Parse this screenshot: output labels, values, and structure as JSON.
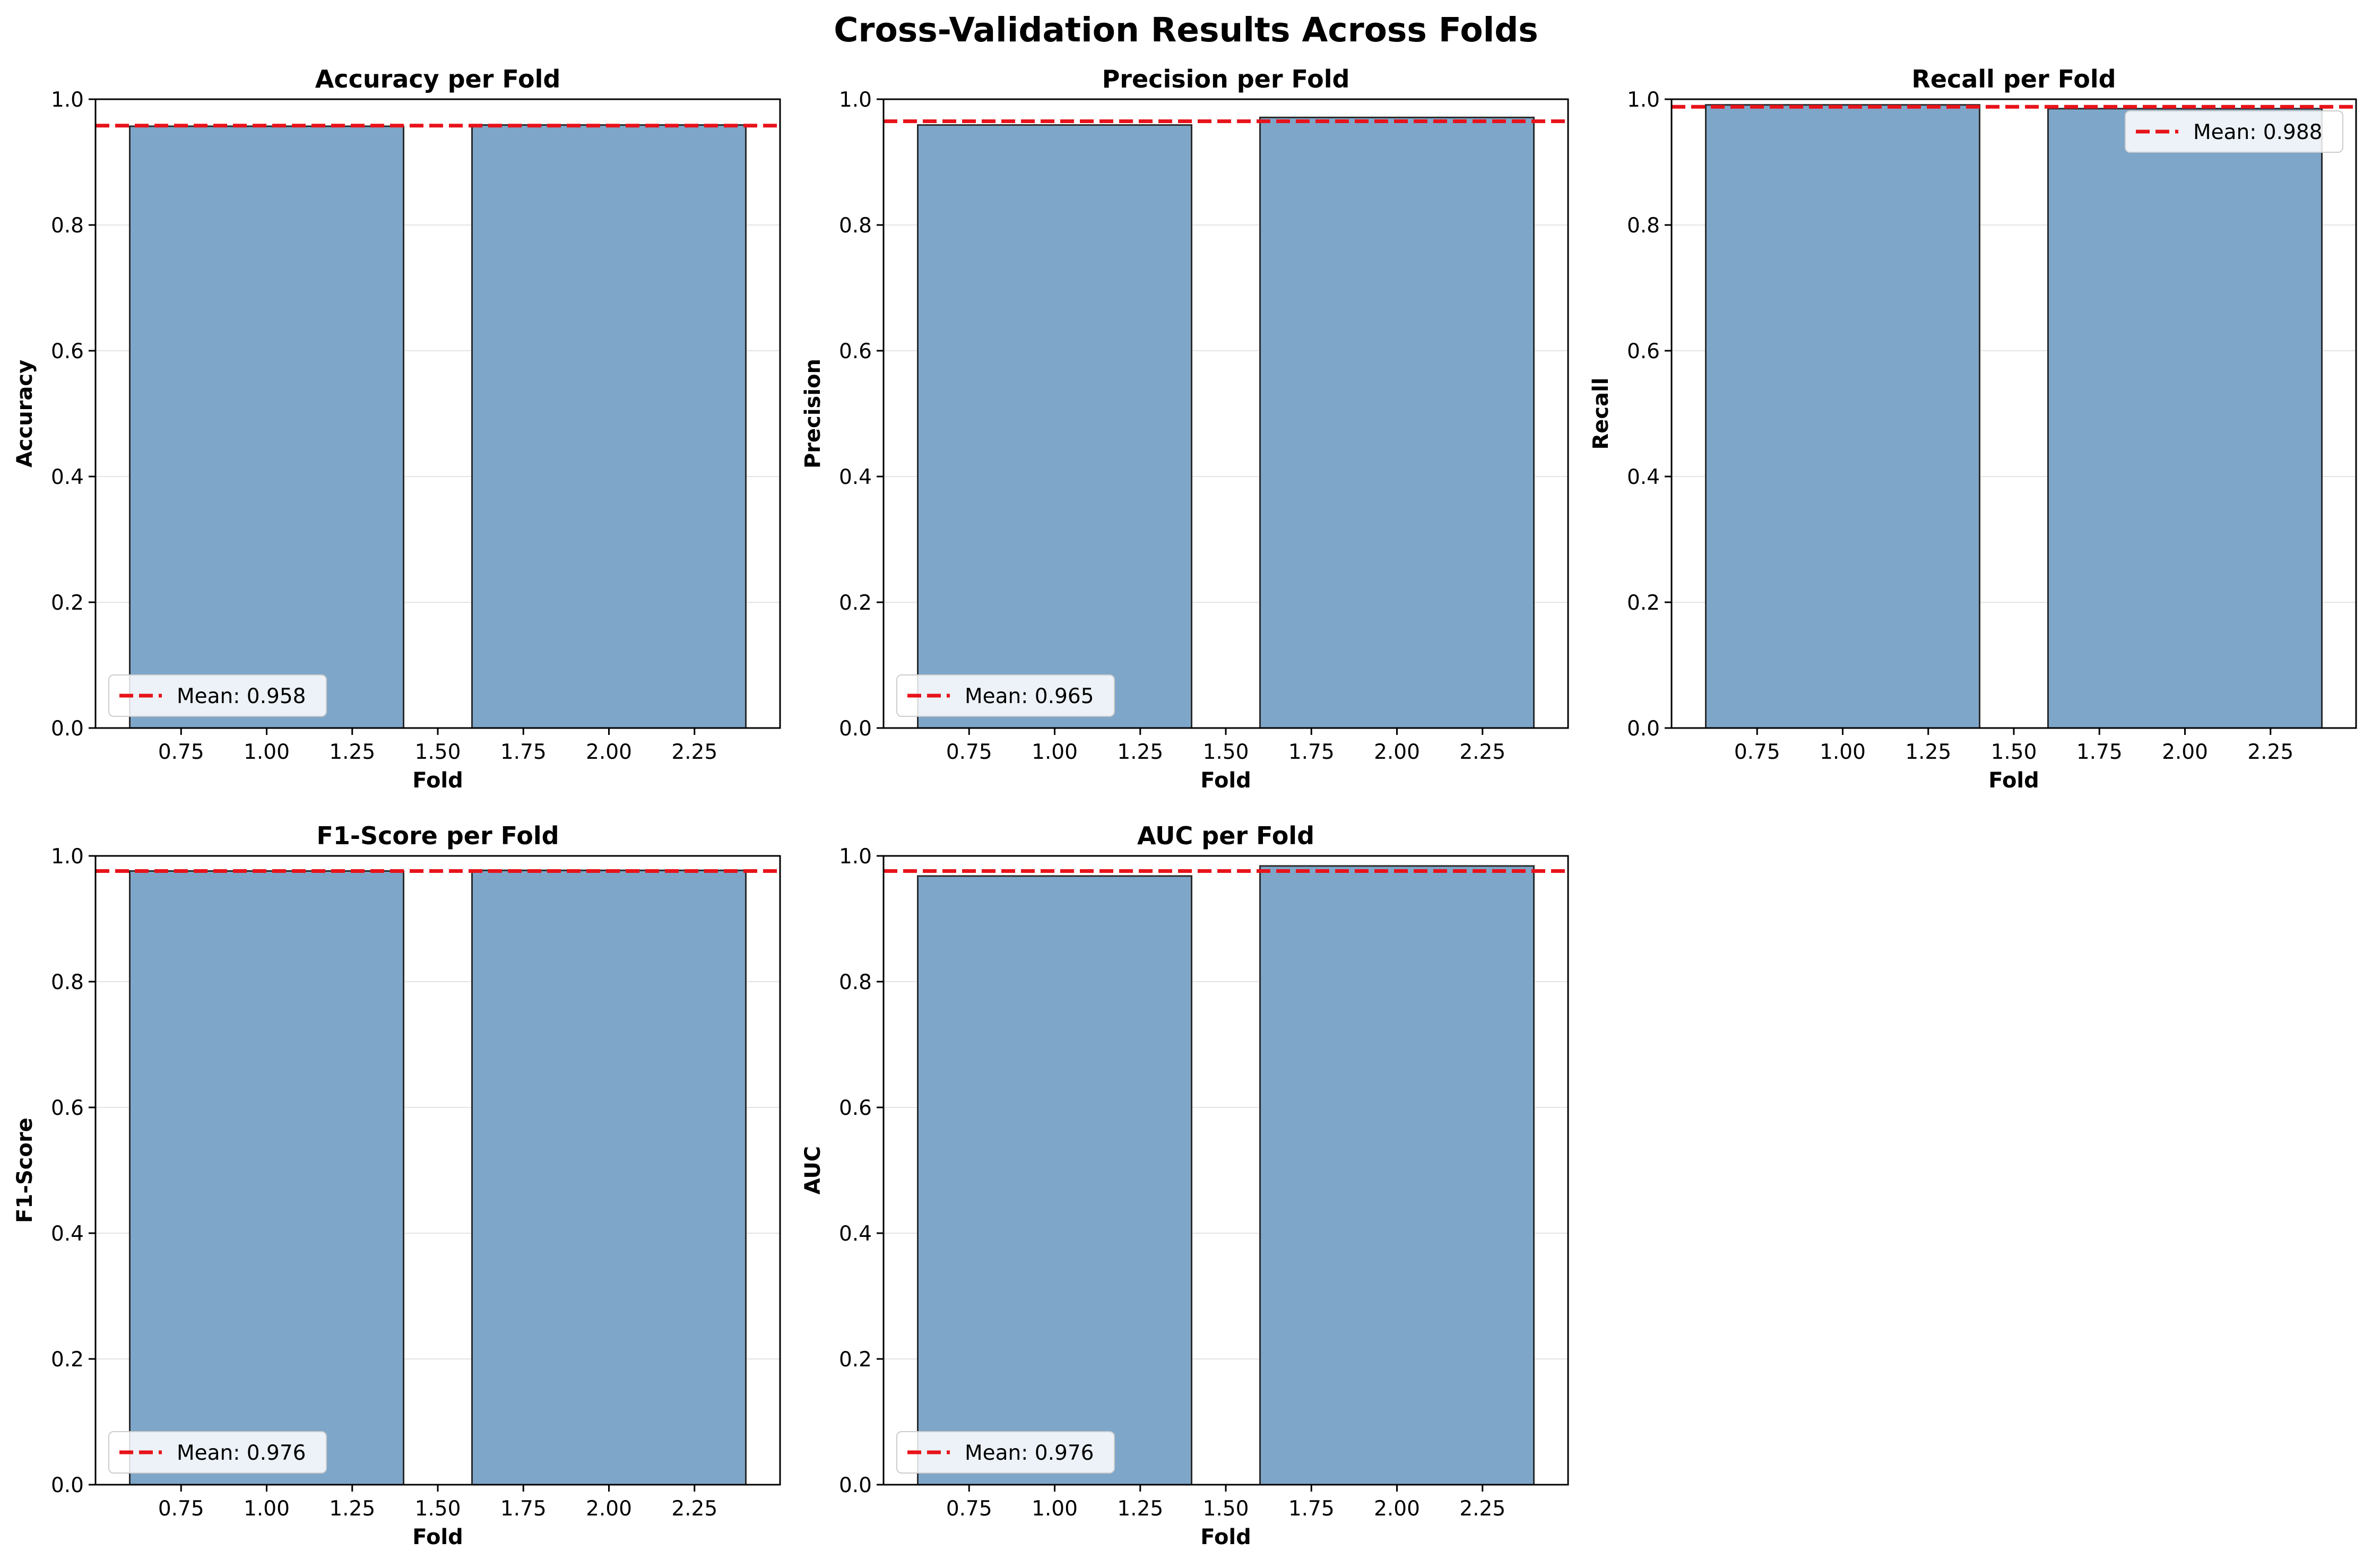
{
  "suptitle": "Cross-Validation Results Across Folds",
  "colors": {
    "bar_fill": "#7ea6c9",
    "bar_edge": "#2a2a2a",
    "mean_line": "#e8131b",
    "grid": "#e4e4e4",
    "axis": "#000000"
  },
  "chart_data": [
    {
      "type": "bar",
      "title": "Accuracy per Fold",
      "xlabel": "Fold",
      "ylabel": "Accuracy",
      "x": [
        1,
        2
      ],
      "values": [
        0.957,
        0.959
      ],
      "bar_width": 0.8,
      "xlim": [
        0.5,
        2.5
      ],
      "ylim": [
        0,
        1
      ],
      "xticks": [
        "0.75",
        "1.00",
        "1.25",
        "1.50",
        "1.75",
        "2.00",
        "2.25"
      ],
      "yticks": [
        "0.0",
        "0.2",
        "0.4",
        "0.6",
        "0.8",
        "1.0"
      ],
      "grid": "y",
      "mean": 0.958,
      "legend_label": "Mean: 0.958",
      "legend_position": "lower-left"
    },
    {
      "type": "bar",
      "title": "Precision per Fold",
      "xlabel": "Fold",
      "ylabel": "Precision",
      "x": [
        1,
        2
      ],
      "values": [
        0.959,
        0.971
      ],
      "bar_width": 0.8,
      "xlim": [
        0.5,
        2.5
      ],
      "ylim": [
        0,
        1
      ],
      "xticks": [
        "0.75",
        "1.00",
        "1.25",
        "1.50",
        "1.75",
        "2.00",
        "2.25"
      ],
      "yticks": [
        "0.0",
        "0.2",
        "0.4",
        "0.6",
        "0.8",
        "1.0"
      ],
      "grid": "y",
      "mean": 0.965,
      "legend_label": "Mean: 0.965",
      "legend_position": "lower-left"
    },
    {
      "type": "bar",
      "title": "Recall per Fold",
      "xlabel": "Fold",
      "ylabel": "Recall",
      "x": [
        1,
        2
      ],
      "values": [
        0.991,
        0.985
      ],
      "bar_width": 0.8,
      "xlim": [
        0.5,
        2.5
      ],
      "ylim": [
        0,
        1
      ],
      "xticks": [
        "0.75",
        "1.00",
        "1.25",
        "1.50",
        "1.75",
        "2.00",
        "2.25"
      ],
      "yticks": [
        "0.0",
        "0.2",
        "0.4",
        "0.6",
        "0.8",
        "1.0"
      ],
      "grid": "y",
      "mean": 0.988,
      "legend_label": "Mean: 0.988",
      "legend_position": "upper-right"
    },
    {
      "type": "bar",
      "title": "F1-Score per Fold",
      "xlabel": "Fold",
      "ylabel": "F1-Score",
      "x": [
        1,
        2
      ],
      "values": [
        0.976,
        0.977
      ],
      "bar_width": 0.8,
      "xlim": [
        0.5,
        2.5
      ],
      "ylim": [
        0,
        1
      ],
      "xticks": [
        "0.75",
        "1.00",
        "1.25",
        "1.50",
        "1.75",
        "2.00",
        "2.25"
      ],
      "yticks": [
        "0.0",
        "0.2",
        "0.4",
        "0.6",
        "0.8",
        "1.0"
      ],
      "grid": "y",
      "mean": 0.976,
      "legend_label": "Mean: 0.976",
      "legend_position": "lower-left"
    },
    {
      "type": "bar",
      "title": "AUC per Fold",
      "xlabel": "Fold",
      "ylabel": "AUC",
      "x": [
        1,
        2
      ],
      "values": [
        0.968,
        0.984
      ],
      "bar_width": 0.8,
      "xlim": [
        0.5,
        2.5
      ],
      "ylim": [
        0,
        1
      ],
      "xticks": [
        "0.75",
        "1.00",
        "1.25",
        "1.50",
        "1.75",
        "2.00",
        "2.25"
      ],
      "yticks": [
        "0.0",
        "0.2",
        "0.4",
        "0.6",
        "0.8",
        "1.0"
      ],
      "grid": "y",
      "mean": 0.976,
      "legend_label": "Mean: 0.976",
      "legend_position": "lower-left"
    }
  ]
}
